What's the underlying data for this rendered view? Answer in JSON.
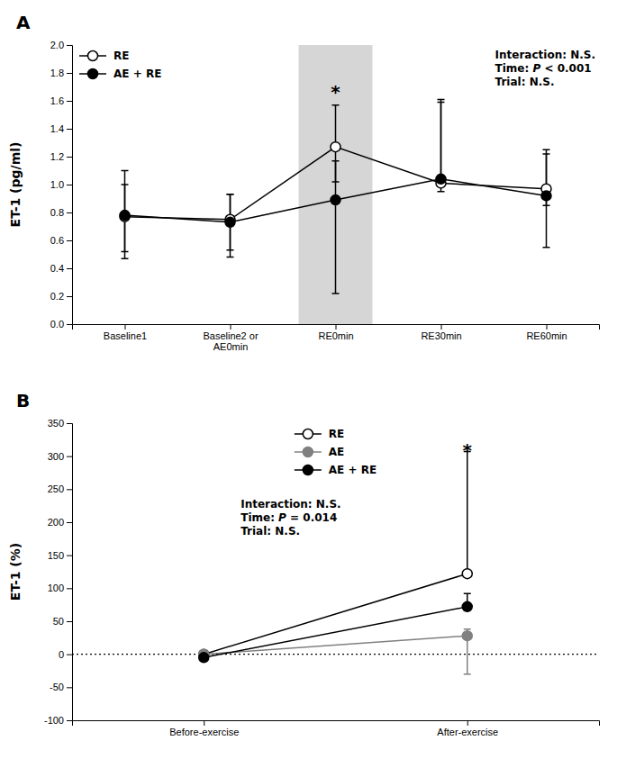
{
  "chart_data": [
    {
      "type": "line",
      "title": "A",
      "categories": [
        "Baseline1",
        "Baseline2 or\nAE0min",
        "RE0min",
        "RE30min",
        "RE60min"
      ],
      "series": [
        {
          "name": "RE",
          "color": "#000000",
          "marker": "open-circle",
          "line_style": "solid",
          "values": [
            0.77,
            0.75,
            1.27,
            1.01,
            0.97
          ],
          "err_upper": [
            0.33,
            0.18,
            0.3,
            0.6,
            0.28
          ],
          "err_lower": [
            0.3,
            0.27,
            0.25,
            0.06,
            0.12
          ]
        },
        {
          "name": "AE + RE",
          "color": "#000000",
          "marker": "filled-circle",
          "line_style": "solid",
          "values": [
            0.78,
            0.73,
            0.89,
            1.04,
            0.92
          ],
          "err_upper": [
            0.22,
            0.2,
            0.28,
            0.55,
            0.3
          ],
          "err_lower": [
            0.26,
            0.2,
            0.67,
            0.05,
            0.37
          ]
        }
      ],
      "y_label": "ET-1 (pg/ml)",
      "ylim": [
        0,
        2.0
      ],
      "yticks": [
        {
          "value": 0,
          "label": "0.0"
        },
        0.2,
        0.4,
        0.6,
        0.8,
        {
          "value": 1.0,
          "label": "1.0"
        },
        1.2,
        1.4,
        1.6,
        1.8,
        {
          "value": 2.0,
          "label": "2.0"
        }
      ],
      "shaded_span": {
        "from": 1.65,
        "to": 2.35
      },
      "annotations": [
        {
          "text": "*",
          "x": "RE0min",
          "y": 1.62
        },
        {
          "text": "Interaction: N.S.\nTime: P < 0.001\nTrial: N.S."
        }
      ],
      "legend": "upper left",
      "grid": false
    },
    {
      "type": "line",
      "title": "B",
      "categories": [
        "Before-exercise",
        "After-exercise"
      ],
      "series": [
        {
          "name": "RE",
          "color": "#000000",
          "marker": "open-circle",
          "line_style": "solid",
          "values": [
            0,
            122
          ],
          "err_upper": [
            0,
            185
          ],
          "err_lower": [
            0,
            0
          ]
        },
        {
          "name": "AE",
          "color": "#808080",
          "marker": "filled-circle",
          "line_style": "solid",
          "values": [
            0,
            28
          ],
          "err_upper": [
            0,
            10
          ],
          "err_lower": [
            0,
            58
          ]
        },
        {
          "name": "AE + RE",
          "color": "#000000",
          "marker": "filled-circle",
          "line_style": "solid",
          "values": [
            -5,
            72
          ],
          "err_upper": [
            0,
            20
          ],
          "err_lower": [
            0,
            0
          ]
        }
      ],
      "y_label": "ET-1 (%)",
      "ylim": [
        -100,
        350
      ],
      "yticks": [
        -100,
        -50,
        0,
        50,
        100,
        150,
        200,
        250,
        300,
        350
      ],
      "reference_lines": [
        {
          "y": 0,
          "line_style": "dotted"
        }
      ],
      "annotations": [
        {
          "text": "*",
          "x": "After-exercise",
          "y": 300
        },
        {
          "text": "Interaction: N.S.\nTime: P = 0.014\nTrial: N.S."
        }
      ],
      "legend": "upper center",
      "grid": false
    }
  ]
}
